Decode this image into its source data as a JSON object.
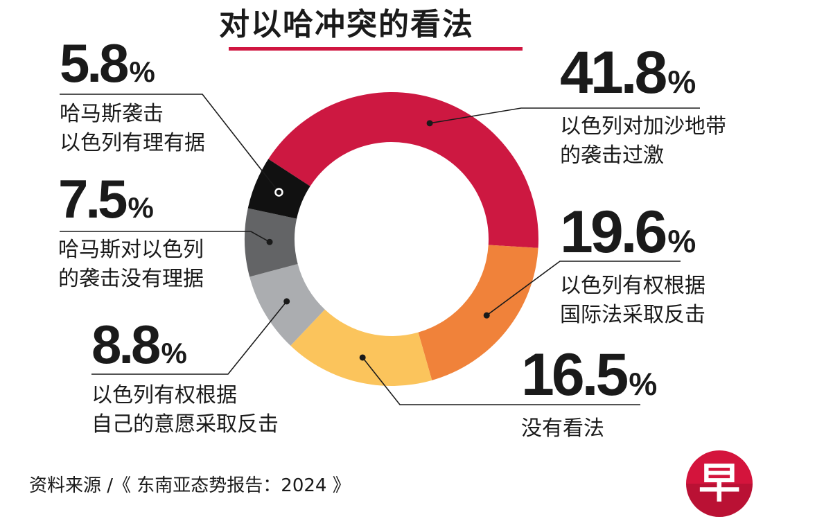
{
  "chart_data": {
    "type": "pie",
    "donut": true,
    "title": "对以哈冲突的看法",
    "categories": [
      "以色列对加沙地带的袭击过激",
      "以色列有权根据国际法采取反击",
      "没有看法",
      "以色列有权根据自己的意愿采取反击",
      "哈马斯对以色列的袭击没有理据",
      "哈马斯袭击以色列有理有据"
    ],
    "values": [
      41.8,
      19.6,
      16.5,
      8.8,
      7.5,
      5.8
    ],
    "value_labels": [
      "41.8",
      "19.6",
      "16.5",
      "8.8",
      "7.5",
      "5.8"
    ],
    "percent_sign": "%",
    "label_lines": [
      [
        "以色列对加沙地带",
        "的袭击过激"
      ],
      [
        "以色列有权根据",
        "国际法采取反击"
      ],
      [
        "没有看法"
      ],
      [
        "以色列有权根据",
        "自己的意愿采取反击"
      ],
      [
        "哈马斯对以色列",
        "的袭击没有理据"
      ],
      [
        "哈马斯袭击",
        "以色列有理有据"
      ]
    ],
    "colors": [
      "#cd1841",
      "#f0823a",
      "#fbc45c",
      "#abadb0",
      "#636466",
      "#111111"
    ],
    "legend": "none"
  },
  "source_text": "资料来源 /《 东南亚态势报告：2024 》",
  "logo": {
    "glyph": "早",
    "color": "#d4143c",
    "icon": "zaobao-logo-icon"
  }
}
